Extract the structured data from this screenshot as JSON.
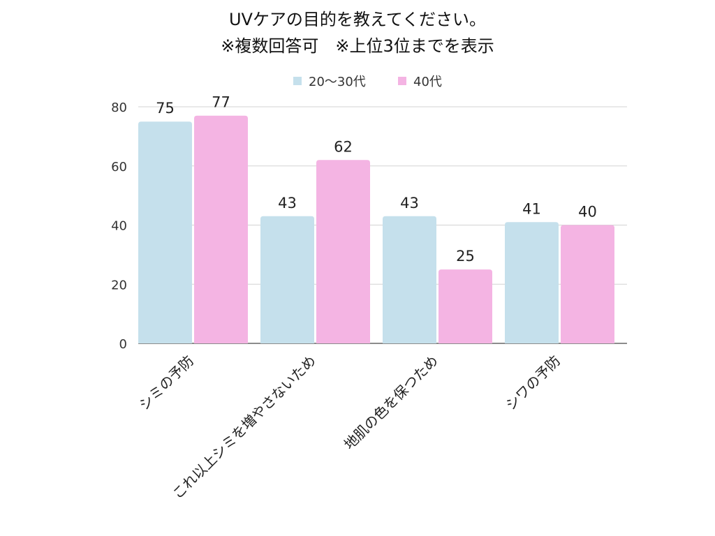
{
  "chart_data": {
    "type": "bar",
    "title_lines": [
      "UVケアの目的を教えてください。",
      "※複数回答可　※上位3位までを表示"
    ],
    "categories": [
      "シミの予防",
      "これ以上シミを増やさないため",
      "地肌の色を保つため",
      "シワの予防"
    ],
    "series": [
      {
        "name": "20〜30代",
        "color": "#c5e0ec",
        "values": [
          75,
          43,
          43,
          41
        ]
      },
      {
        "name": "40代",
        "color": "#f4b4e3",
        "values": [
          77,
          62,
          25,
          40
        ]
      }
    ],
    "ylim": [
      0,
      80
    ],
    "yticks": [
      0,
      20,
      40,
      60,
      80
    ],
    "grid": true,
    "legend_position": "top-center",
    "xlabel": "",
    "ylabel": ""
  }
}
